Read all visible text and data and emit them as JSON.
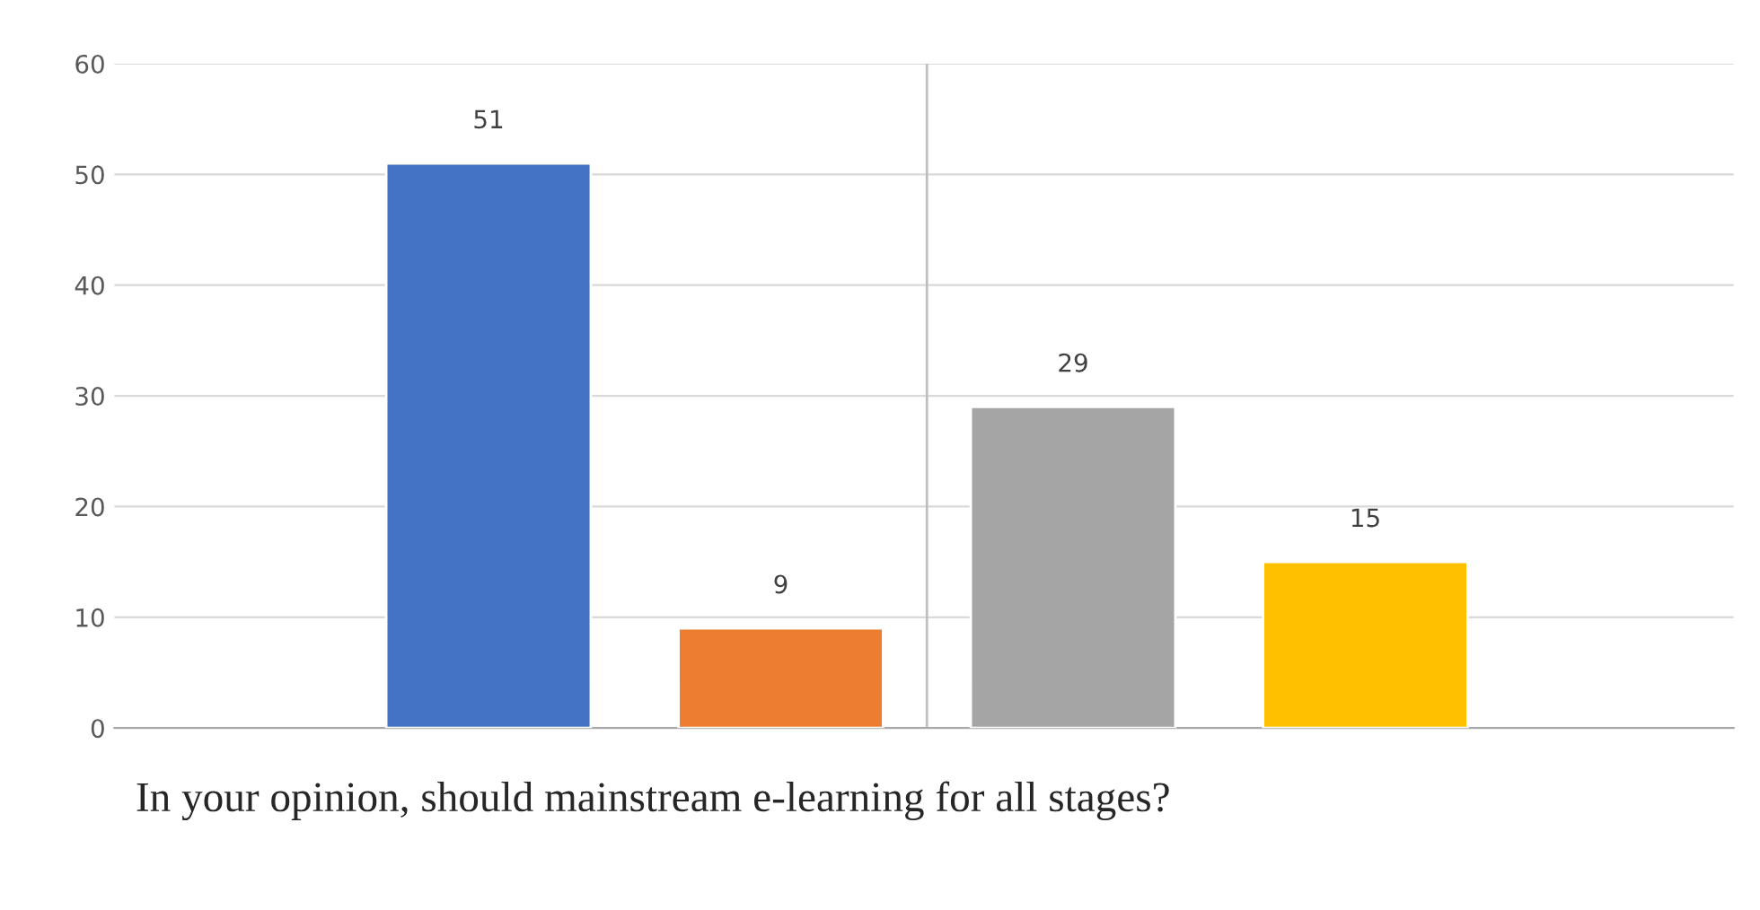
{
  "chart_data": {
    "type": "bar",
    "title": "In your opinion, should mainstream e-learning for all stages?",
    "categories": [
      null,
      null,
      null,
      null
    ],
    "values": [
      51,
      9,
      29,
      15
    ],
    "colors": [
      "#4472c4",
      "#ed7d31",
      "#a5a5a5",
      "#ffc000"
    ],
    "ylim": [
      0,
      60
    ],
    "yticks": [
      0,
      10,
      20,
      30,
      40,
      50,
      60
    ],
    "grid": "y",
    "data_labels": true
  }
}
